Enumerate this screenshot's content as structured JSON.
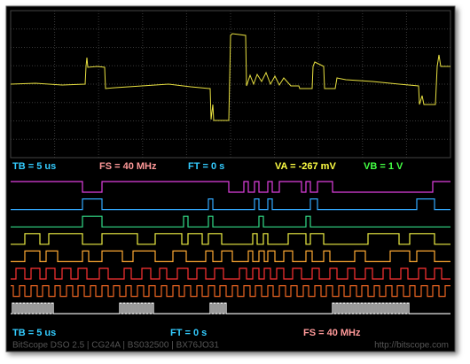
{
  "status_bar": {
    "timebase": "TB = 5 us",
    "sample_rate": "FS = 40 MHz",
    "trigger": "FT = 0 s",
    "channel_a": "VA = -267 mV",
    "channel_b": "VB = 1 V"
  },
  "logic_bar": {
    "timebase": "TB = 5 us",
    "trigger": "FT = 0 s",
    "sample_rate": "FS = 40 MHz"
  },
  "footer": {
    "info": "BitScope DSO 2.5 | CG24A | BS032500 | BX76JO31",
    "url": "http://bitscope.com"
  }
}
